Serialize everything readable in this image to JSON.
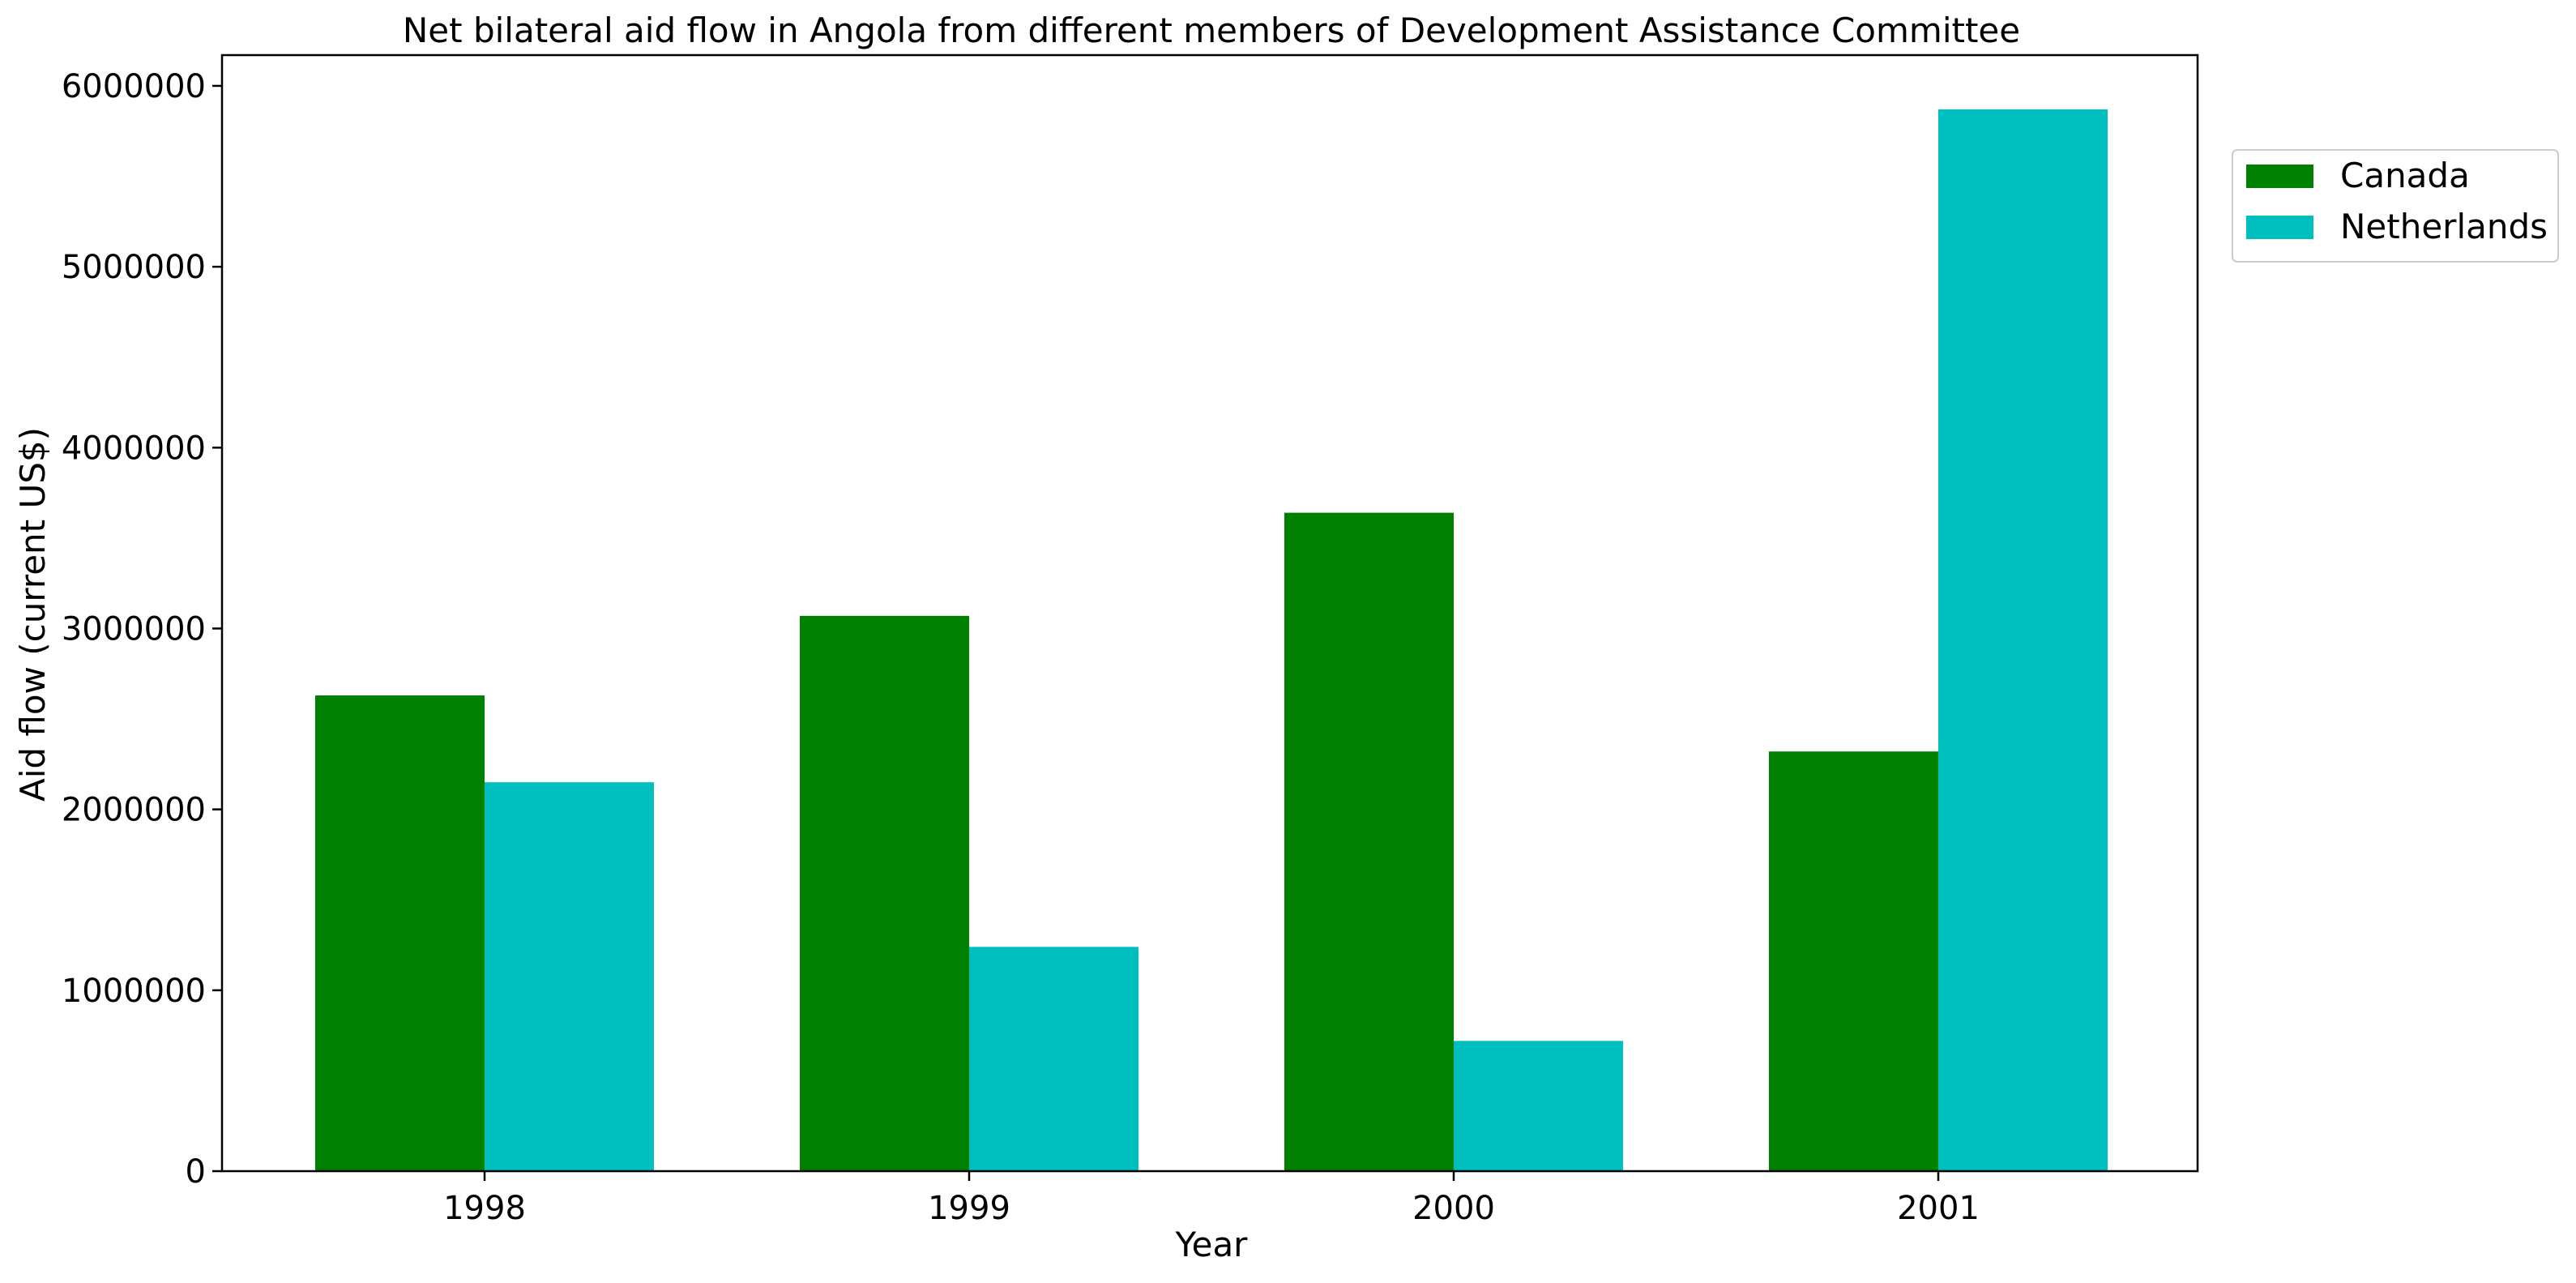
{
  "chart_data": {
    "type": "bar",
    "title": "Net bilateral aid flow in Angola from different members of Development Assistance Committee",
    "xlabel": "Year",
    "ylabel": "Aid flow (current US$)",
    "categories": [
      "1998",
      "1999",
      "2000",
      "2001"
    ],
    "series": [
      {
        "name": "Canada",
        "color": "#008000",
        "values": [
          2630000,
          3070000,
          3640000,
          2320000
        ]
      },
      {
        "name": "Netherlands",
        "color": "#00BFBF",
        "values": [
          2150000,
          1240000,
          720000,
          5870000
        ]
      }
    ],
    "ylim": [
      0,
      6170000
    ],
    "yticks": [
      0,
      1000000,
      2000000,
      3000000,
      4000000,
      5000000,
      6000000
    ],
    "ytick_labels": [
      "0",
      "1000000",
      "2000000",
      "3000000",
      "4000000",
      "5000000",
      "6000000"
    ],
    "grid": false,
    "legend_position": "outside-top-right"
  }
}
